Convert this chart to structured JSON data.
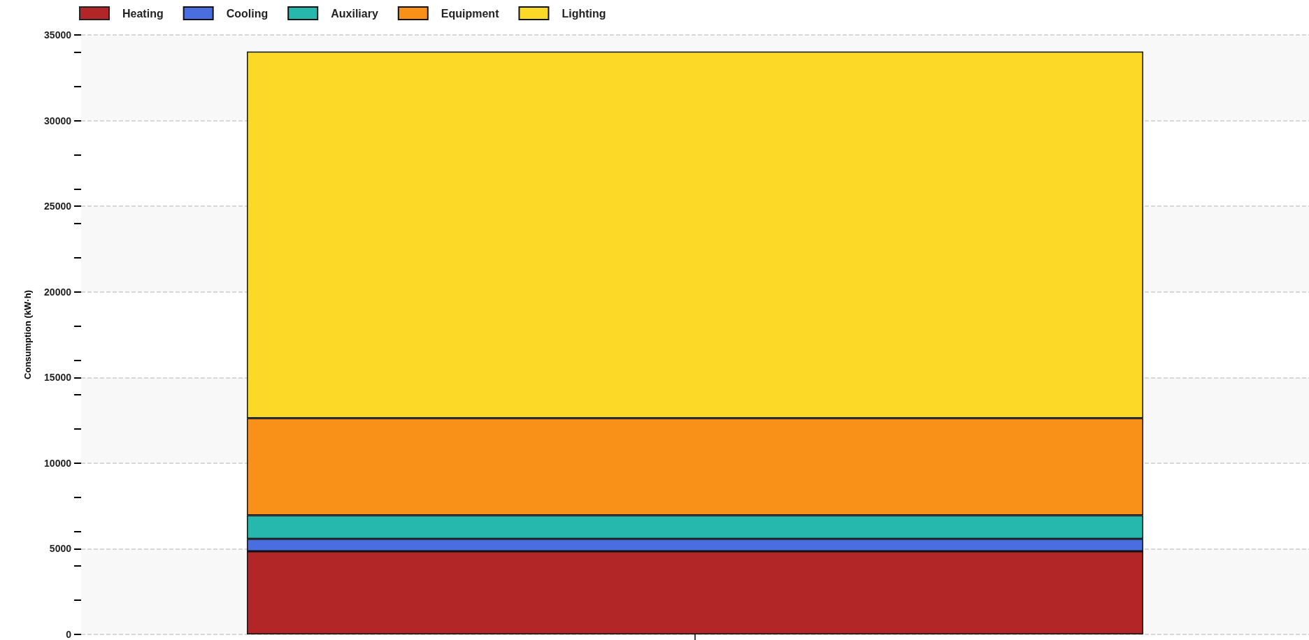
{
  "chart_data": {
    "type": "bar",
    "stacked": true,
    "ylabel": "Consumption (kW·h)",
    "categories": [
      null
    ],
    "series": [
      {
        "name": "Heating",
        "color": "#b22628",
        "values": [
          4850
        ]
      },
      {
        "name": "Cooling",
        "color": "#4a6ee0",
        "values": [
          730
        ]
      },
      {
        "name": "Auxiliary",
        "color": "#26b8ac",
        "values": [
          1380
        ]
      },
      {
        "name": "Equipment",
        "color": "#f99118",
        "values": [
          5670
        ]
      },
      {
        "name": "Lighting",
        "color": "#fbd926",
        "values": [
          21400
        ]
      }
    ],
    "ylim": [
      0,
      35000
    ],
    "yticks": [
      0,
      5000,
      10000,
      15000,
      20000,
      25000,
      30000,
      35000
    ],
    "grid": "y",
    "legend": "top left"
  }
}
